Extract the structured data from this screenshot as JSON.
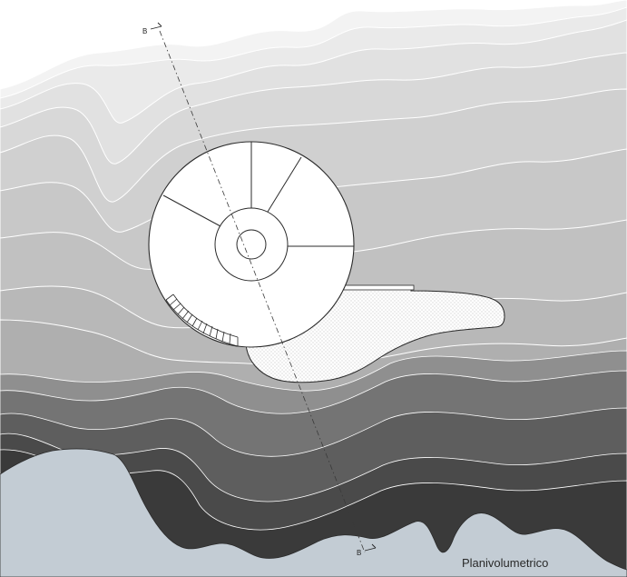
{
  "drawing": {
    "title": "Planivolumetrico",
    "section_marker_top": "B",
    "section_marker_bottom": "B"
  },
  "palette": {
    "sea": "#c3ccd4",
    "building_fill": "#ffffff",
    "contour_line": "#ffffff",
    "outline": "#2b2b2b"
  }
}
